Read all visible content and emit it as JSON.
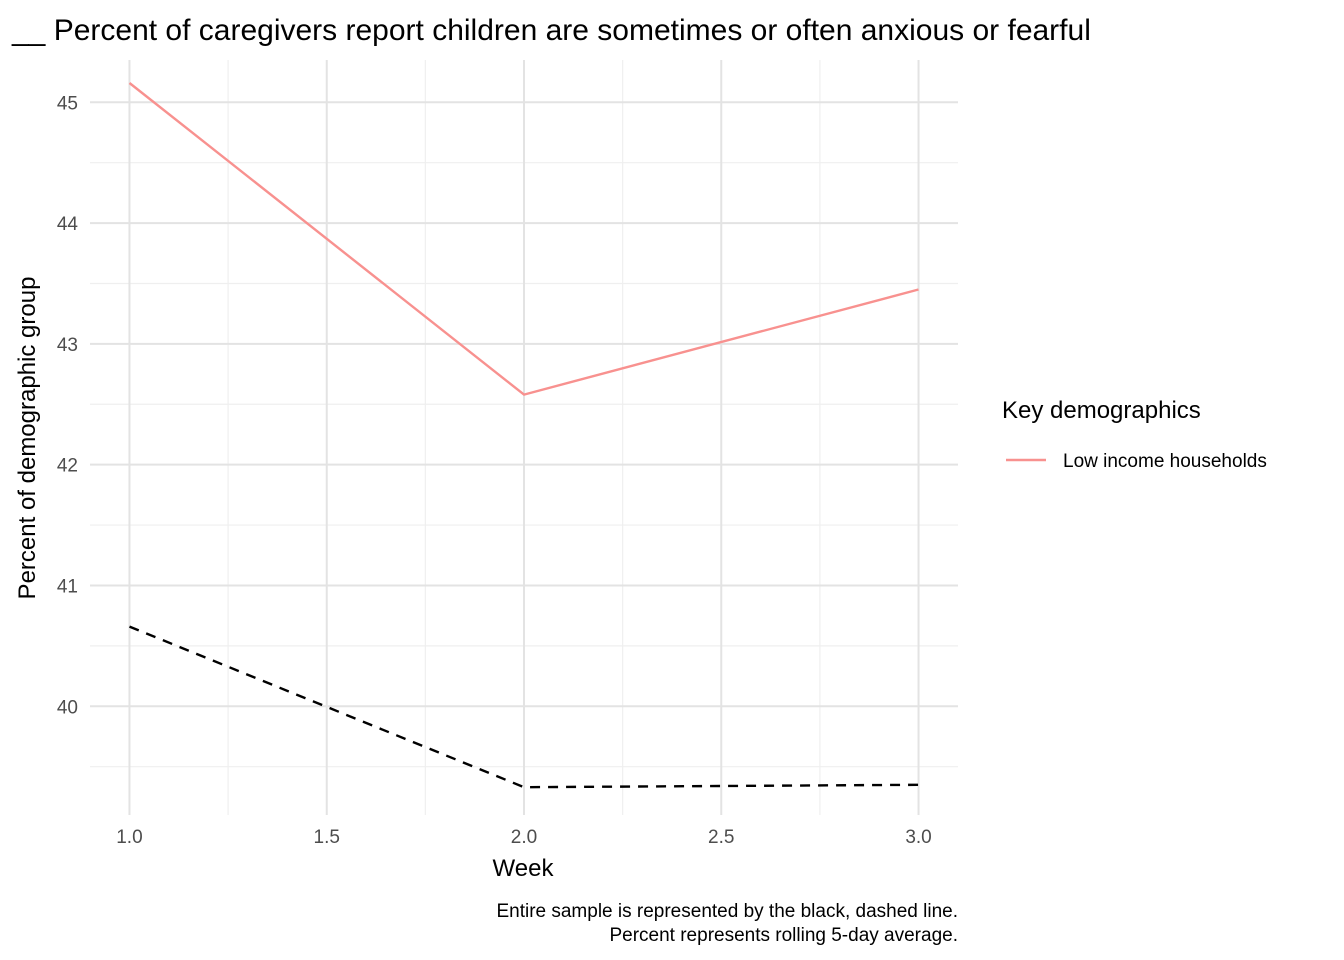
{
  "chart_data": {
    "type": "line",
    "title": "__ Percent of caregivers report children are sometimes or often anxious or fearful",
    "xlabel": "Week",
    "ylabel": "Percent of demographic group",
    "x": [
      1.0,
      2.0,
      3.0
    ],
    "xlim": [
      0.9,
      3.1
    ],
    "ylim": [
      39.1,
      45.35
    ],
    "x_ticks": [
      1.0,
      1.5,
      2.0,
      2.5,
      3.0
    ],
    "x_tick_labels": [
      "1.0",
      "1.5",
      "2.0",
      "2.5",
      "3.0"
    ],
    "y_ticks": [
      40,
      41,
      42,
      43,
      44,
      45
    ],
    "y_tick_labels": [
      "40",
      "41",
      "42",
      "43",
      "44",
      "45"
    ],
    "grid": true,
    "series": [
      {
        "name": "Low income households",
        "values": [
          45.16,
          42.58,
          43.45
        ],
        "color": "#f8918f",
        "dash": "solid"
      },
      {
        "values": [
          40.66,
          39.33,
          39.35
        ],
        "color": "#000000",
        "dash": "dashed"
      }
    ],
    "legend": {
      "title": "Key demographics",
      "placement": "right"
    },
    "caption": [
      "Entire sample is represented by the black, dashed line.",
      "Percent represents rolling 5-day average."
    ]
  }
}
